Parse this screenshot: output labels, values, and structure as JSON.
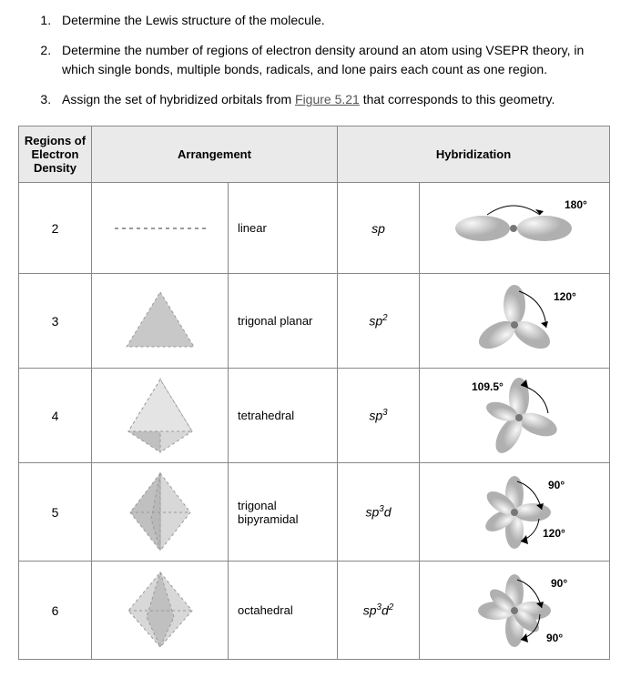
{
  "steps": [
    "Determine the Lewis structure of the molecule.",
    "Determine the number of regions of electron density around an atom using VSEPR theory, in which single bonds, multiple bonds, radicals, and lone pairs each count as one region.",
    "Assign the set of hybridized orbitals from <a class=\"figlink\" data-name=\"figure-link\" data-interactable=\"true\">Figure 5.21</a> that corresponds to this geometry."
  ],
  "headers": {
    "regions": "Regions of Electron Density",
    "arrangement": "Arrangement",
    "hybridization": "Hybridization"
  },
  "rows": [
    {
      "n": "2",
      "geom": "linear",
      "hyb": "sp",
      "hyb_html": "<i>sp</i>",
      "angles": [
        "180°"
      ]
    },
    {
      "n": "3",
      "geom": "trigonal planar",
      "hyb": "sp2",
      "hyb_html": "<i>sp</i><sup>2</sup>",
      "angles": [
        "120°"
      ]
    },
    {
      "n": "4",
      "geom": "tetrahedral",
      "hyb": "sp3",
      "hyb_html": "<i>sp</i><sup>3</sup>",
      "angles": [
        "109.5°"
      ]
    },
    {
      "n": "5",
      "geom": "trigonal bipyramidal",
      "hyb": "sp3d",
      "hyb_html": "<i>sp</i><sup>3</sup><i>d</i>",
      "angles": [
        "90°",
        "120°"
      ]
    },
    {
      "n": "6",
      "geom": "octahedral",
      "hyb": "sp3d2",
      "hyb_html": "<i>sp</i><sup>3</sup><i>d</i><sup>2</sup>",
      "angles": [
        "90°",
        "90°"
      ]
    }
  ],
  "colors": {
    "shape_fill": "#c8c8c8",
    "shape_fill_light": "#e6e6e6",
    "shape_stroke": "#999",
    "dash": "#999",
    "lobe_grad_inner": "#f8f8f8",
    "lobe_grad_outer": "#b8b8b8",
    "label": "#000"
  }
}
